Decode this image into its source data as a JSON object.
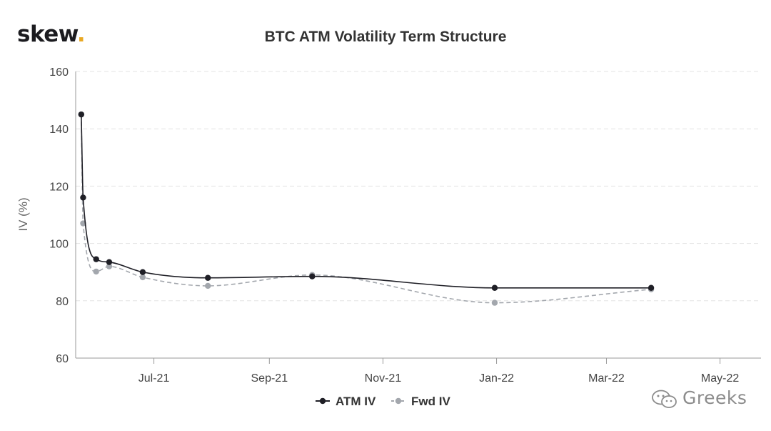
{
  "brand": {
    "name": "skew",
    "dot": "."
  },
  "watermark": {
    "text": "Greeks",
    "icon": "wechat-icon"
  },
  "colors": {
    "atm": "#1f1f26",
    "fwd": "#a3a7ad",
    "grid": "#e3e3e3",
    "axis": "#9a9a9a",
    "brand_dot": "#e9a823"
  },
  "chart_data": {
    "type": "line",
    "title": "BTC ATM Volatility Term Structure",
    "xlabel": "",
    "ylabel": "IV (%)",
    "ylim": [
      60,
      160
    ],
    "yticks": [
      60,
      80,
      100,
      120,
      140,
      160
    ],
    "xlim": [
      "2021-05-20",
      "2022-05-23"
    ],
    "xticks": [
      {
        "date": "2021-07-01",
        "label": "Jul-21"
      },
      {
        "date": "2021-09-01",
        "label": "Sep-21"
      },
      {
        "date": "2021-11-01",
        "label": "Nov-21"
      },
      {
        "date": "2022-01-01",
        "label": "Jan-22"
      },
      {
        "date": "2022-03-01",
        "label": "Mar-22"
      },
      {
        "date": "2022-05-01",
        "label": "May-22"
      }
    ],
    "grid": true,
    "legend": "bottom-center",
    "series": [
      {
        "name": "ATM IV",
        "x": [
          "2021-05-23",
          "2021-05-24",
          "2021-05-31",
          "2021-06-07",
          "2021-06-25",
          "2021-07-30",
          "2021-09-24",
          "2021-12-31",
          "2022-03-25"
        ],
        "values": [
          145,
          116,
          94.5,
          93.5,
          90,
          88,
          88.5,
          84.5,
          84.5
        ]
      },
      {
        "name": "Fwd IV",
        "x": [
          "2021-05-23",
          "2021-05-24",
          "2021-05-31",
          "2021-06-07",
          "2021-06-25",
          "2021-07-30",
          "2021-09-24",
          "2021-12-31",
          "2022-03-25"
        ],
        "values": [
          145,
          107,
          90.2,
          92,
          88.2,
          85.2,
          89,
          79.3,
          84
        ]
      }
    ]
  }
}
